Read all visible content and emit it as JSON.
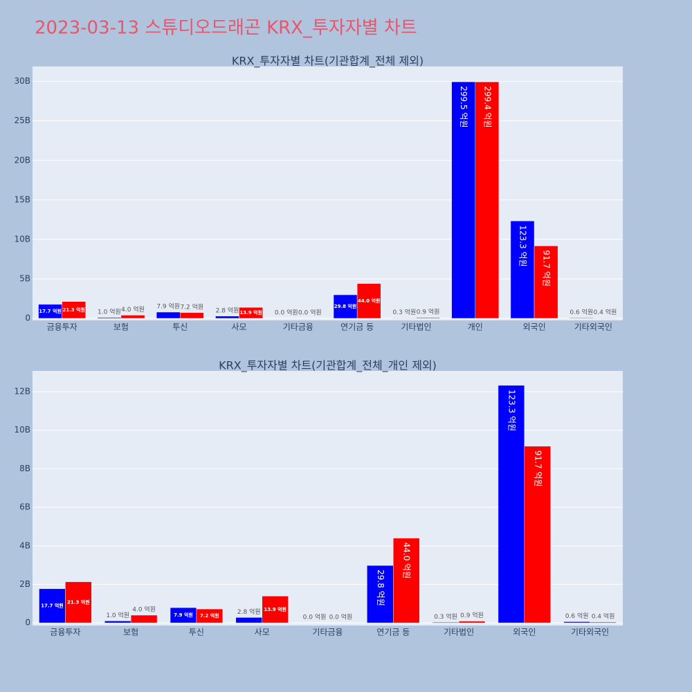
{
  "title": "2023-03-13 스튜디오드래곤 KRX_투자자별 차트",
  "chart_data": [
    {
      "type": "bar",
      "title": "KRX_투자자별 차트(기관합계_전체 제외)",
      "categories": [
        "금융투자",
        "보험",
        "투신",
        "사모",
        "기타금융",
        "연기금 등",
        "기타법인",
        "개인",
        "외국인",
        "기타외국인"
      ],
      "series": [
        {
          "color": "#0000ff",
          "values": [
            1770000000,
            100000000,
            790000000,
            280000000,
            0,
            2980000000,
            30000000,
            29950000000,
            12330000000,
            60000000
          ],
          "value_labels": [
            "17.7 억원",
            "1.0 억원",
            "7.9 억원",
            "2.8 억원",
            "0.0 억원",
            "29.8 억원",
            "0.3 억원",
            "299.5 억원",
            "123.3 억원",
            "0.6 억원"
          ]
        },
        {
          "color": "#ff0000",
          "values": [
            2130000000,
            400000000,
            720000000,
            1390000000,
            0,
            4400000000,
            90000000,
            29940000000,
            9170000000,
            40000000
          ],
          "value_labels": [
            "21.3 억원",
            "4.0 억원",
            "7.2 억원",
            "13.9 억원",
            "0.0 억원",
            "44.0 억원",
            "0.9 억원",
            "299.4 억원",
            "91.7 억원",
            "0.4 억원"
          ]
        }
      ],
      "ylim": [
        -260000000,
        31900000000
      ],
      "yticks": [
        0,
        {
          "value": 5000000000,
          "label": "5B"
        },
        {
          "value": 10000000000,
          "label": "10B"
        },
        {
          "value": 15000000000,
          "label": "15B"
        },
        {
          "value": 20000000000,
          "label": "20B"
        },
        {
          "value": 25000000000,
          "label": "25B"
        },
        {
          "value": 30000000000,
          "label": "30B"
        }
      ],
      "grid": true
    },
    {
      "type": "bar",
      "title": "KRX_투자자별 차트(기관합계_전체_개인 제외)",
      "categories": [
        "금융투자",
        "보험",
        "투신",
        "사모",
        "기타금융",
        "연기금 등",
        "기타법인",
        "외국인",
        "기타외국인"
      ],
      "series": [
        {
          "color": "#0000ff",
          "values": [
            1770000000,
            100000000,
            790000000,
            280000000,
            0,
            2980000000,
            30000000,
            12330000000,
            60000000
          ],
          "value_labels": [
            "17.7 억원",
            "1.0 억원",
            "7.9 억원",
            "2.8 억원",
            "0.0 억원",
            "29.8 억원",
            "0.3 억원",
            "123.3 억원",
            "0.6 억원"
          ]
        },
        {
          "color": "#ff0000",
          "values": [
            2130000000,
            400000000,
            720000000,
            1390000000,
            0,
            4400000000,
            90000000,
            9170000000,
            40000000
          ],
          "value_labels": [
            "21.3 억원",
            "4.0 억원",
            "7.2 억원",
            "13.9 억원",
            "0.0 억원",
            "44.0 억원",
            "0.9 억원",
            "91.7 억원",
            "0.4 억원"
          ]
        }
      ],
      "ylim": [
        -140000000,
        13080000000
      ],
      "yticks": [
        0,
        {
          "value": 2000000000,
          "label": "2B"
        },
        {
          "value": 4000000000,
          "label": "4B"
        },
        {
          "value": 6000000000,
          "label": "6B"
        },
        {
          "value": 8000000000,
          "label": "8B"
        },
        {
          "value": 10000000000,
          "label": "10B"
        },
        {
          "value": 12000000000,
          "label": "12B"
        }
      ],
      "grid": true
    }
  ]
}
